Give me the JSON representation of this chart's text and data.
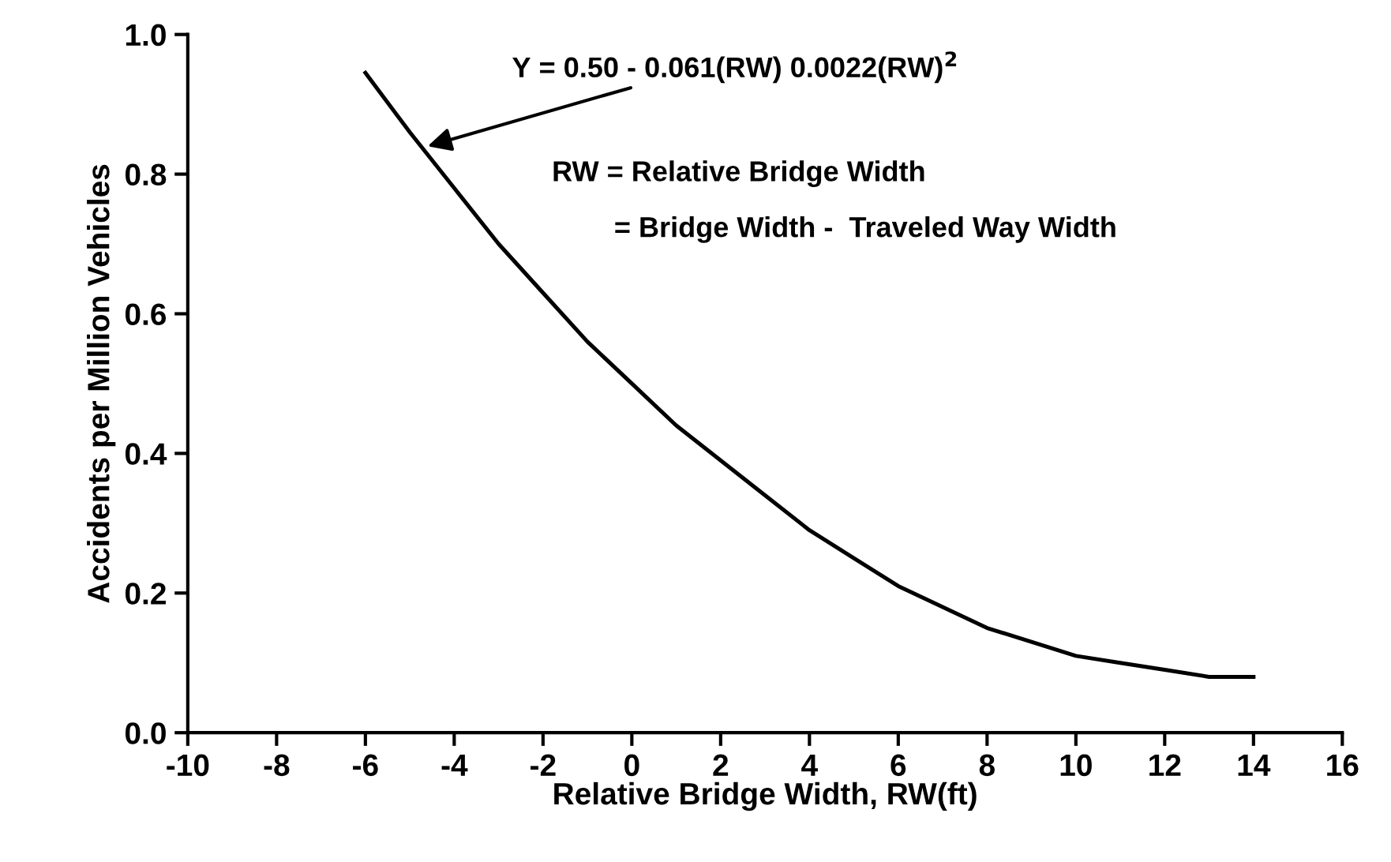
{
  "chart_data": {
    "type": "line",
    "xlabel": "Relative Bridge Width, RW(ft)",
    "ylabel": "Accidents per Million Vehicles",
    "x": [
      -6,
      -5,
      -4,
      -3,
      -2,
      -1,
      0,
      1,
      2,
      3,
      4,
      5,
      6,
      7,
      8,
      9,
      10,
      11,
      12,
      13,
      14
    ],
    "series": [
      {
        "color": "#000000",
        "values": [
          0.945,
          0.86,
          0.78,
          0.7,
          0.63,
          0.56,
          0.5,
          0.44,
          0.39,
          0.34,
          0.29,
          0.25,
          0.21,
          0.18,
          0.15,
          0.13,
          0.11,
          0.1,
          0.09,
          0.08,
          0.08
        ]
      }
    ],
    "xlim": [
      -10,
      16
    ],
    "xticks": [
      -10,
      -8,
      -6,
      -4,
      -2,
      0,
      2,
      4,
      6,
      8,
      10,
      12,
      14,
      16
    ],
    "ylim": [
      0,
      1
    ],
    "yticks": [
      {
        "value": 0,
        "label": "0.0"
      },
      {
        "value": 0.2,
        "label": "0.2"
      },
      {
        "value": 0.4,
        "label": "0.4"
      },
      {
        "value": 0.6,
        "label": "0.6"
      },
      {
        "value": 0.8,
        "label": "0.8"
      },
      {
        "value": 1,
        "label": "1.0"
      }
    ],
    "grid": false,
    "legend": false,
    "marker": "none",
    "line_style": "solid",
    "annotations": [
      {
        "text": "Y = 0.50 - 0.061(RW) 0.0022(RW)$^{2}$",
        "x": -4.6,
        "y": 0.84
      },
      "RW = Relative Bridge Width",
      "= Bridge Width -  Traveled Way Width"
    ]
  }
}
